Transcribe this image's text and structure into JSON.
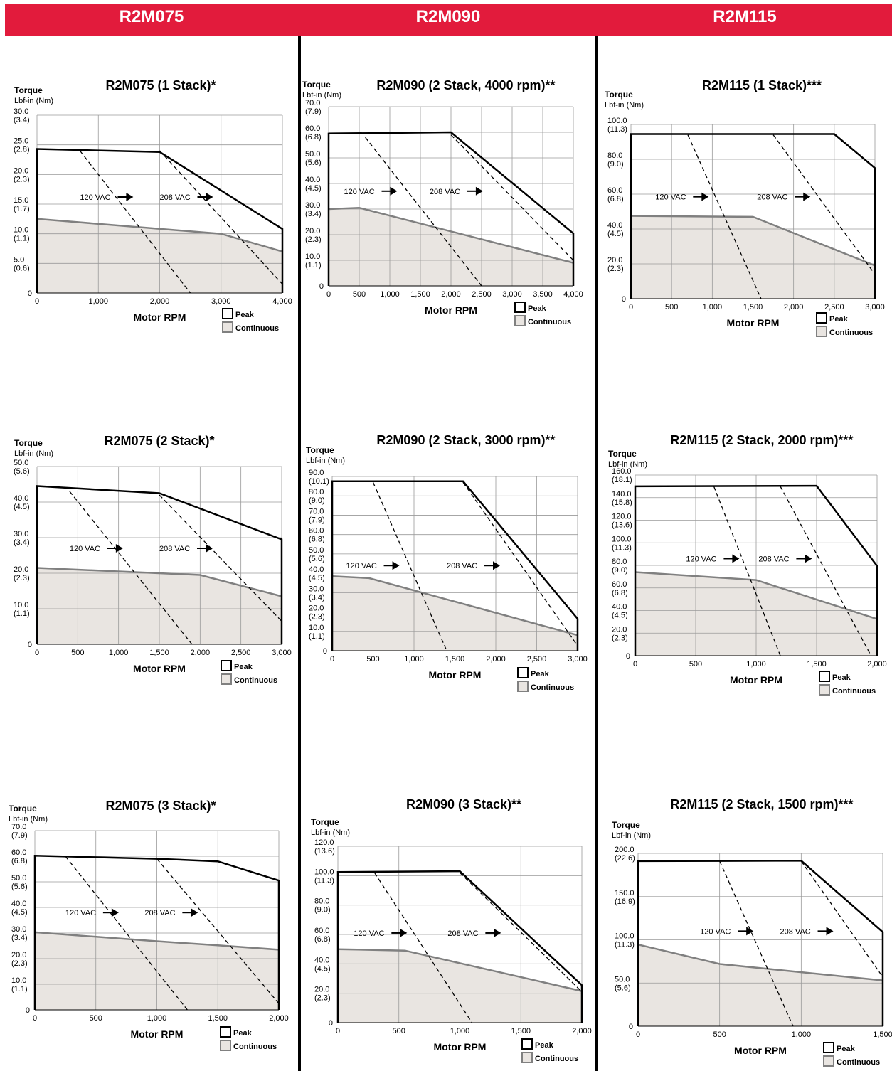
{
  "header": {
    "columns": [
      "R2M075",
      "R2M090",
      "R2M115"
    ]
  },
  "common": {
    "ylabel": "Torque",
    "yunit": "Lbf-in (Nm)",
    "xlabel": "Motor RPM",
    "legend_peak": "Peak",
    "legend_continuous": "Continuous",
    "label_120": "120  VAC",
    "label_208": "208  VAC"
  },
  "colors": {
    "brand_red": "#e21b3c",
    "continuous_fill": "#e9e5e1",
    "continuous_line": "#808080",
    "peak_line": "#000000",
    "grid": "#9a9a9a"
  },
  "chart_data": [
    {
      "type": "line",
      "title": "R2M075 (1 Stack)*",
      "xlim": [
        0,
        4000
      ],
      "xticks": [
        0,
        1000,
        2000,
        3000,
        4000
      ],
      "xtick_labels": [
        "0",
        "1,000",
        "2,000",
        "3,000",
        "4,000"
      ],
      "ylim": [
        0,
        30
      ],
      "yticks": [
        0,
        5,
        10,
        15,
        20,
        25,
        30
      ],
      "ytick_labels": [
        "0",
        "5.0\n(0.6)",
        "10.0\n(1.1)",
        "15.0\n(1.7)",
        "20.0\n(2.3)",
        "25.0\n(2.8)",
        "30.0\n(3.4)"
      ],
      "peak": [
        [
          0,
          24.3
        ],
        [
          2000,
          23.8
        ],
        [
          4000,
          10.8
        ]
      ],
      "continuous": [
        [
          0,
          12.5
        ],
        [
          3000,
          10.0
        ],
        [
          4000,
          7.0
        ]
      ],
      "line_120": [
        [
          700,
          24
        ],
        [
          2500,
          0
        ]
      ],
      "line_208": [
        [
          2000,
          24
        ],
        [
          4000,
          1.5
        ]
      ],
      "label_120_at": [
        700,
        16.2
      ],
      "label_208_at": [
        2000,
        16.2
      ]
    },
    {
      "type": "line",
      "title": "R2M075 (2 Stack)*",
      "xlim": [
        0,
        3000
      ],
      "xticks": [
        0,
        500,
        1000,
        1500,
        2000,
        2500,
        3000
      ],
      "xtick_labels": [
        "0",
        "500",
        "1,000",
        "1,500",
        "2,000",
        "2,500",
        "3,000"
      ],
      "ylim": [
        0,
        50
      ],
      "yticks": [
        0,
        10,
        20,
        30,
        40,
        50
      ],
      "ytick_labels": [
        "0",
        "10.0\n(1.1)",
        "20.0\n(2.3)",
        "30.0\n(3.4)",
        "40.0\n(4.5)",
        "50.0\n(5.6)"
      ],
      "peak": [
        [
          0,
          44.5
        ],
        [
          1500,
          42.5
        ],
        [
          3000,
          29.5
        ]
      ],
      "continuous": [
        [
          0,
          21.5
        ],
        [
          2000,
          19.5
        ],
        [
          3000,
          13.5
        ]
      ],
      "line_120": [
        [
          400,
          43
        ],
        [
          1900,
          0
        ]
      ],
      "line_208": [
        [
          1500,
          42
        ],
        [
          3000,
          6.5
        ]
      ],
      "label_120_at": [
        400,
        27
      ],
      "label_208_at": [
        1500,
        27
      ]
    },
    {
      "type": "line",
      "title": "R2M075 (3 Stack)*",
      "xlim": [
        0,
        2000
      ],
      "xticks": [
        0,
        500,
        1000,
        1500,
        2000
      ],
      "xtick_labels": [
        "0",
        "500",
        "1,000",
        "1,500",
        "2,000"
      ],
      "ylim": [
        0,
        70
      ],
      "yticks": [
        0,
        10,
        20,
        30,
        40,
        50,
        60,
        70
      ],
      "ytick_labels": [
        "0",
        "10.0\n(1.1)",
        "20.0\n(2.3)",
        "30.0\n(3.4)",
        "40.0\n(4.5)",
        "50.0\n(5.6)",
        "60.0\n(6.8)",
        "70.0\n(7.9)"
      ],
      "peak": [
        [
          0,
          60.2
        ],
        [
          1000,
          59.0
        ],
        [
          1500,
          58.0
        ],
        [
          2000,
          50.5
        ]
      ],
      "continuous": [
        [
          0,
          30.3
        ],
        [
          1000,
          26.8
        ],
        [
          1500,
          25.2
        ],
        [
          2000,
          23.5
        ]
      ],
      "line_120": [
        [
          250,
          60
        ],
        [
          1250,
          0
        ]
      ],
      "line_208": [
        [
          1000,
          59
        ],
        [
          2000,
          2.5
        ]
      ],
      "label_120_at": [
        250,
        38
      ],
      "label_208_at": [
        900,
        38
      ]
    },
    {
      "type": "line",
      "title": "R2M090 (2 Stack, 4000 rpm)**",
      "xlim": [
        0,
        4000
      ],
      "xticks": [
        0,
        500,
        1000,
        1500,
        2000,
        2500,
        3000,
        3500,
        4000
      ],
      "xtick_labels": [
        "0",
        "500",
        "1,000",
        "1,500",
        "2,000",
        "2,500",
        "3,000",
        "3,500",
        "4,000"
      ],
      "ylim": [
        0,
        70
      ],
      "yticks": [
        0,
        10,
        20,
        30,
        40,
        50,
        60,
        70
      ],
      "ytick_labels": [
        "0",
        "10.0\n(1.1)",
        "20.0\n(2.3)",
        "30.0\n(3.4)",
        "40.0\n(4.5)",
        "50.0\n(5.6)",
        "60.0\n(6.8)",
        "70.0\n(7.9)"
      ],
      "peak": [
        [
          0,
          59.5
        ],
        [
          2000,
          60.0
        ],
        [
          4000,
          20.5
        ]
      ],
      "continuous": [
        [
          0,
          30.0
        ],
        [
          500,
          30.5
        ],
        [
          4000,
          9.0
        ]
      ],
      "line_120": [
        [
          600,
          58
        ],
        [
          2500,
          0
        ]
      ],
      "line_208": [
        [
          2000,
          59
        ],
        [
          4000,
          10
        ]
      ],
      "label_120_at": [
        250,
        37
      ],
      "label_208_at": [
        1650,
        37
      ]
    },
    {
      "type": "line",
      "title": "R2M090 (2 Stack, 3000 rpm)**",
      "xlim": [
        0,
        3000
      ],
      "xticks": [
        0,
        500,
        1000,
        1500,
        2000,
        2500,
        3000
      ],
      "xtick_labels": [
        "0",
        "500",
        "1,000",
        "1,500",
        "2,000",
        "2,500",
        "3,000"
      ],
      "ylim": [
        0,
        90
      ],
      "yticks": [
        0,
        10,
        20,
        30,
        40,
        50,
        60,
        70,
        80,
        90
      ],
      "ytick_labels": [
        "0",
        "10.0\n(1.1)",
        "20.0\n(2.3)",
        "30.0\n(3.4)",
        "40.0\n(4.5)",
        "50.0\n(5.6)",
        "60.0\n(6.8)",
        "70.0\n(7.9)",
        "80.0\n(9.0)",
        "90.0\n(10.1)"
      ],
      "peak": [
        [
          0,
          87.5
        ],
        [
          1600,
          87.5
        ],
        [
          3000,
          16.5
        ]
      ],
      "continuous": [
        [
          0,
          38.5
        ],
        [
          450,
          37.5
        ],
        [
          3000,
          8.0
        ]
      ],
      "line_120": [
        [
          500,
          87
        ],
        [
          1400,
          0
        ]
      ],
      "line_208": [
        [
          1600,
          87
        ],
        [
          3000,
          2.5
        ]
      ],
      "label_120_at": [
        170,
        44
      ],
      "label_208_at": [
        1400,
        44
      ]
    },
    {
      "type": "line",
      "title": "R2M090 (3 Stack)**",
      "xlim": [
        0,
        2000
      ],
      "xticks": [
        0,
        500,
        1000,
        1500,
        2000
      ],
      "xtick_labels": [
        "0",
        "500",
        "1,000",
        "1,500",
        "2,000"
      ],
      "ylim": [
        0,
        120
      ],
      "yticks": [
        0,
        20,
        40,
        60,
        80,
        100,
        120
      ],
      "ytick_labels": [
        "0",
        "20.0\n(2.3)",
        "40.0\n(4.5)",
        "60.0\n(6.8)",
        "80.0\n(9.0)",
        "100.0\n(11.3)",
        "120.0\n(13.6)"
      ],
      "peak": [
        [
          0,
          102.5
        ],
        [
          1000,
          103.0
        ],
        [
          2000,
          25.5
        ]
      ],
      "continuous": [
        [
          0,
          50.0
        ],
        [
          550,
          49.0
        ],
        [
          2000,
          21.5
        ]
      ],
      "line_120": [
        [
          300,
          102
        ],
        [
          1100,
          0
        ]
      ],
      "line_208": [
        [
          1000,
          102
        ],
        [
          2000,
          21
        ]
      ],
      "label_120_at": [
        130,
        61
      ],
      "label_208_at": [
        900,
        61
      ]
    },
    {
      "type": "line",
      "title": "R2M115 (1 Stack)***",
      "xlim": [
        0,
        3000
      ],
      "xticks": [
        0,
        500,
        1000,
        1500,
        2000,
        2500,
        3000
      ],
      "xtick_labels": [
        "0",
        "500",
        "1,000",
        "1,500",
        "2,000",
        "2,500",
        "3,000"
      ],
      "ylim": [
        0,
        100
      ],
      "yticks": [
        0,
        20,
        40,
        60,
        80,
        100
      ],
      "ytick_labels": [
        "0",
        "20.0\n(2.3)",
        "40.0\n(4.5)",
        "60.0\n(6.8)",
        "80.0\n(9.0)",
        "100.0\n(11.3)"
      ],
      "peak": [
        [
          0,
          94.5
        ],
        [
          2500,
          94.5
        ],
        [
          3000,
          75.0
        ]
      ],
      "continuous": [
        [
          0,
          47.5
        ],
        [
          1500,
          47.0
        ],
        [
          3000,
          19.0
        ]
      ],
      "line_120": [
        [
          700,
          94
        ],
        [
          1600,
          0
        ]
      ],
      "line_208": [
        [
          1750,
          94
        ],
        [
          3000,
          14
        ]
      ],
      "label_120_at": [
        300,
        58.5
      ],
      "label_208_at": [
        1550,
        58.5
      ]
    },
    {
      "type": "line",
      "title": "R2M115 (2 Stack, 2000 rpm)***",
      "xlim": [
        0,
        2000
      ],
      "xticks": [
        0,
        500,
        1000,
        1500,
        2000
      ],
      "xtick_labels": [
        "0",
        "500",
        "1,000",
        "1,500",
        "2,000"
      ],
      "ylim": [
        0,
        160
      ],
      "yticks": [
        0,
        20,
        40,
        60,
        80,
        100,
        120,
        140,
        160
      ],
      "ytick_labels": [
        "0",
        "20.0\n(2.3)",
        "40.0\n(4.5)",
        "60.0\n(6.8)",
        "80.0\n(9.0)",
        "100.0\n(11.3)",
        "120.0\n(13.6)",
        "140.0\n(15.8)",
        "160.0\n(18.1)"
      ],
      "peak": [
        [
          0,
          150.0
        ],
        [
          1500,
          150.5
        ],
        [
          2000,
          79.5
        ]
      ],
      "continuous": [
        [
          0,
          74.0
        ],
        [
          1000,
          67.0
        ],
        [
          2000,
          32.5
        ]
      ],
      "line_120": [
        [
          650,
          150
        ],
        [
          1200,
          0
        ]
      ],
      "line_208": [
        [
          1200,
          150
        ],
        [
          1950,
          0
        ]
      ],
      "label_120_at": [
        420,
        86
      ],
      "label_208_at": [
        1020,
        86
      ]
    },
    {
      "type": "line",
      "title": "R2M115 (2 Stack, 1500 rpm)***",
      "xlim": [
        0,
        1500
      ],
      "xticks": [
        0,
        500,
        1000,
        1500
      ],
      "xtick_labels": [
        "0",
        "500",
        "1,000",
        "1,500"
      ],
      "ylim": [
        0,
        200
      ],
      "yticks": [
        0,
        50,
        100,
        150,
        200
      ],
      "ytick_labels": [
        "0",
        "50.0\n(5.6)",
        "100.0\n(11.3)",
        "150.0\n(16.9)",
        "200.0\n(22.6)"
      ],
      "peak": [
        [
          0,
          191.0
        ],
        [
          1000,
          191.5
        ],
        [
          1500,
          109.0
        ]
      ],
      "continuous": [
        [
          0,
          94.5
        ],
        [
          500,
          72.0
        ],
        [
          1500,
          53.0
        ]
      ],
      "line_120": [
        [
          500,
          191
        ],
        [
          950,
          0
        ]
      ],
      "line_208": [
        [
          1000,
          191
        ],
        [
          1500,
          57
        ]
      ],
      "label_120_at": [
        380,
        110
      ],
      "label_208_at": [
        870,
        110
      ]
    }
  ]
}
